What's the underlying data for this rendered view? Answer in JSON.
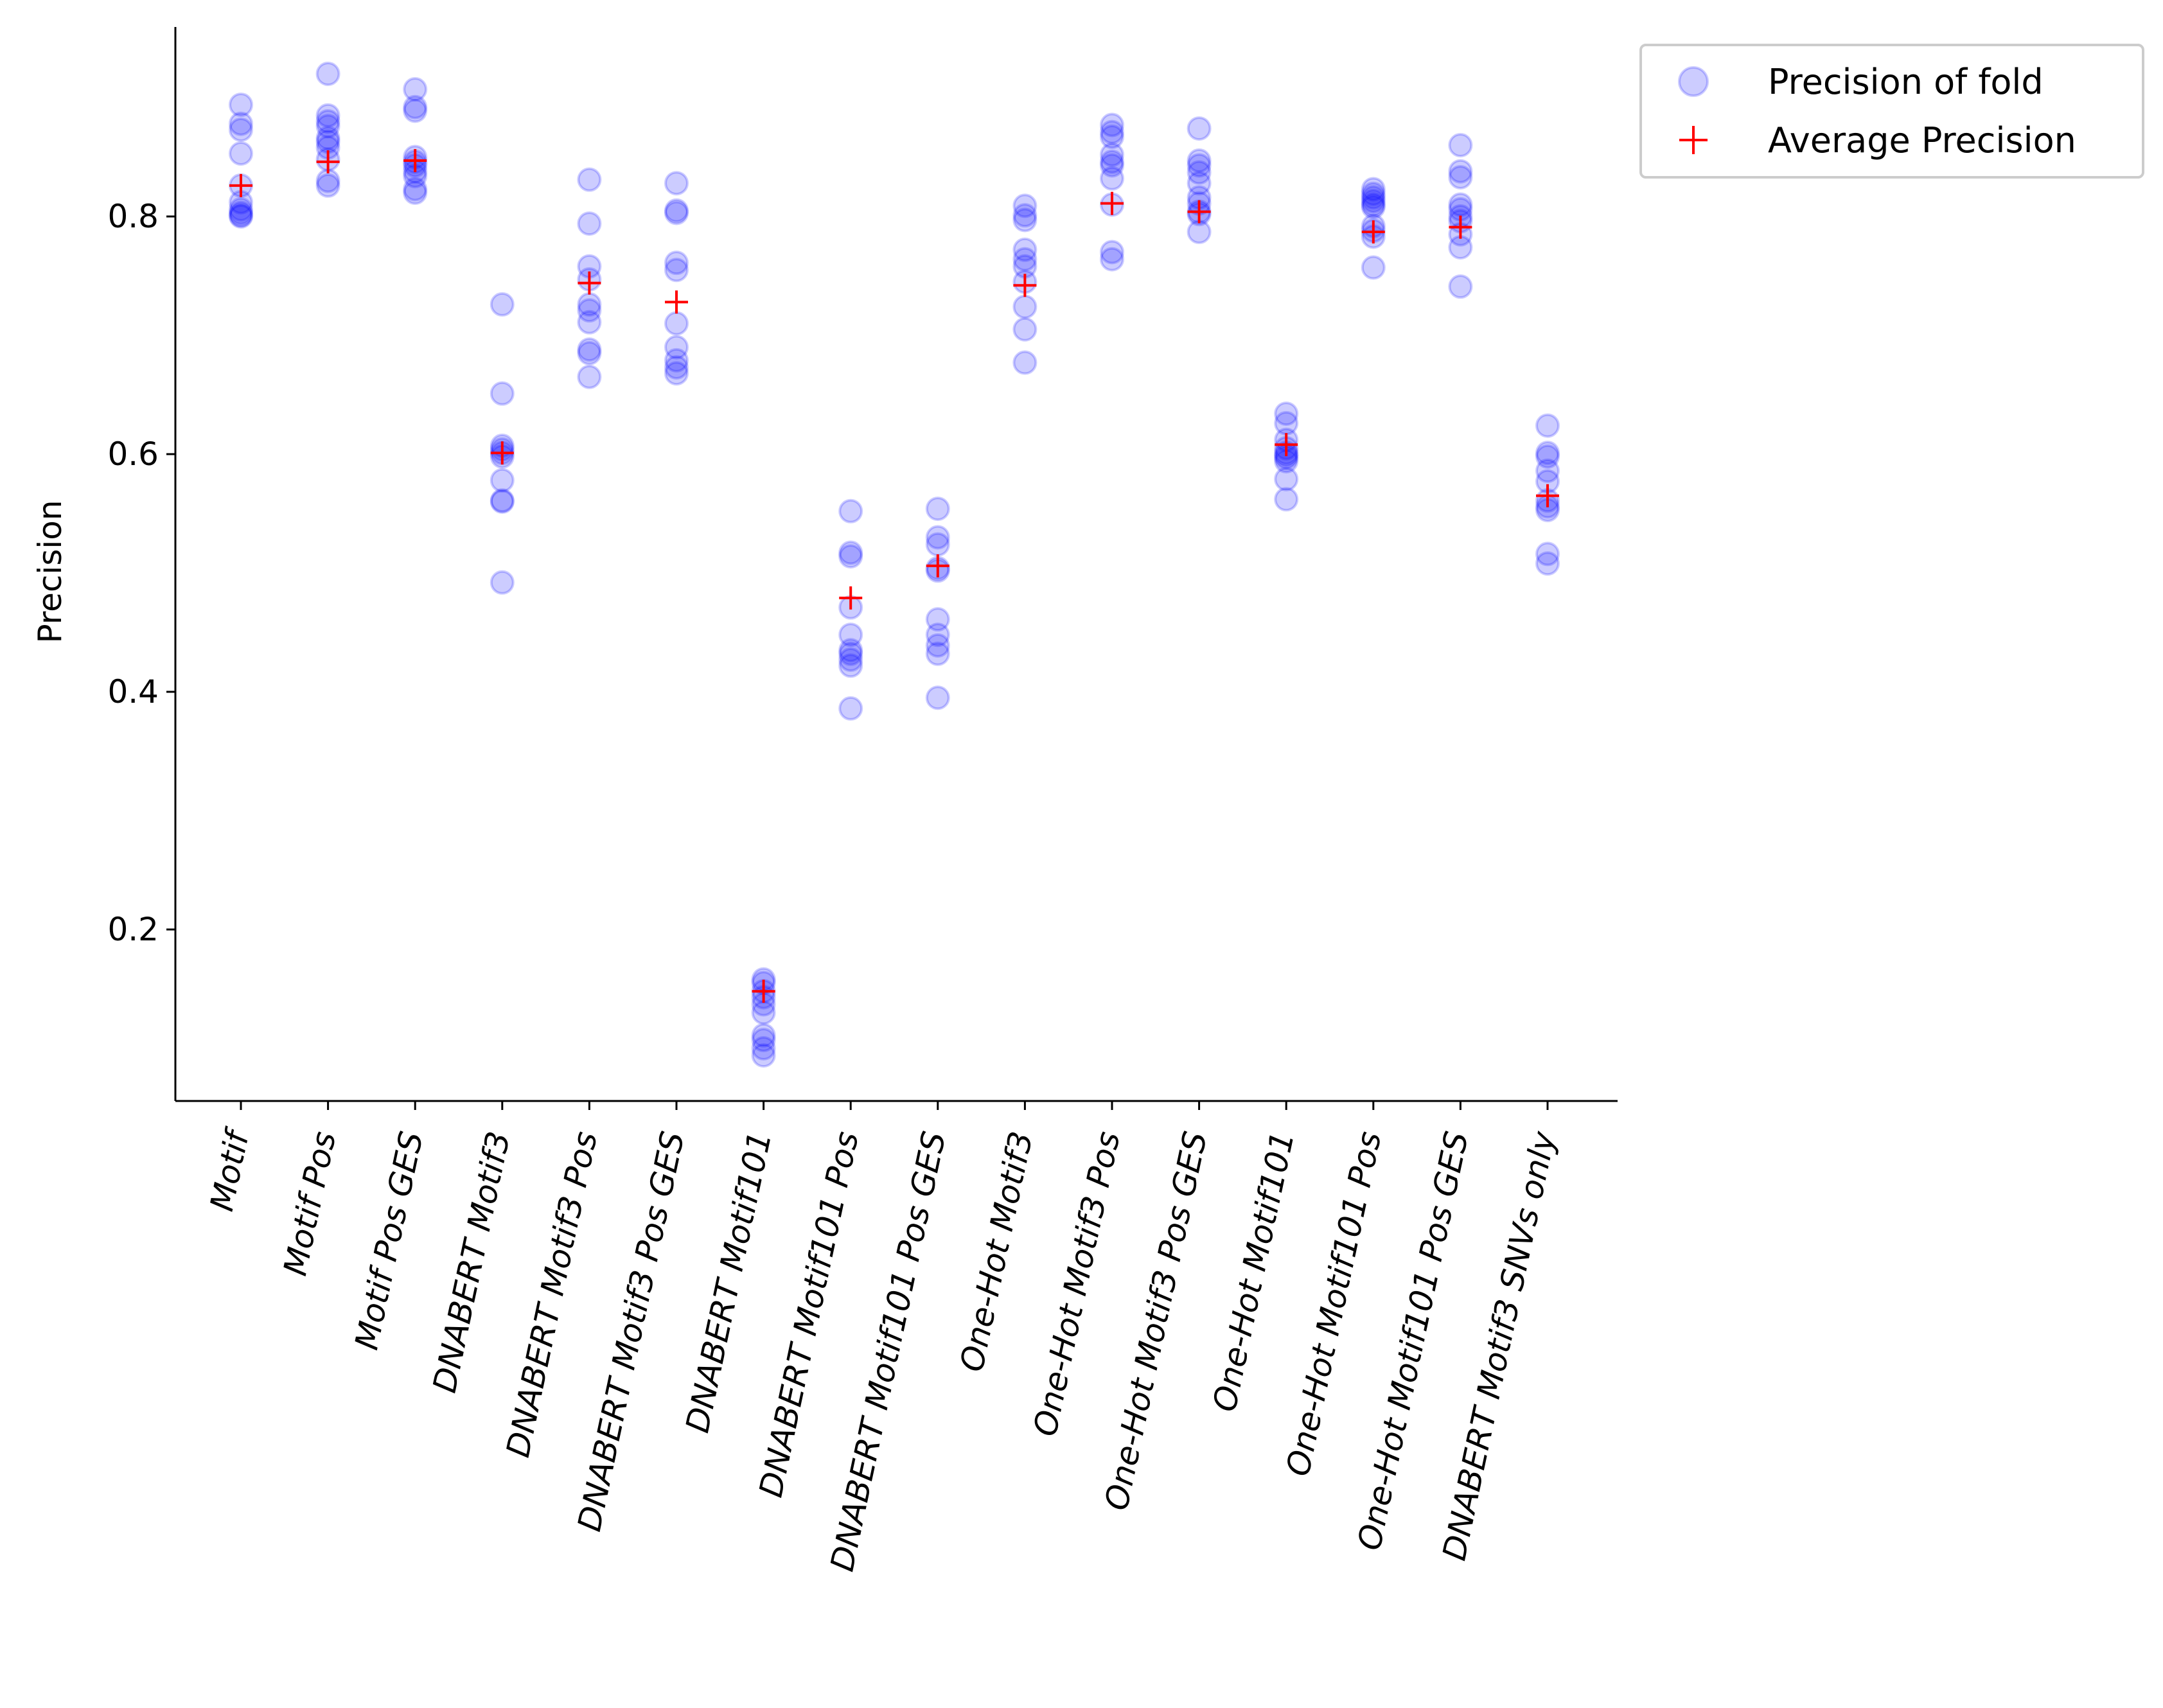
{
  "chart_data": {
    "type": "scatter",
    "title": "",
    "xlabel": "",
    "ylabel": "Precision",
    "ylim": [
      0.055,
      0.96
    ],
    "yticks": [
      0.2,
      0.4,
      0.6,
      0.8
    ],
    "ytick_labels": [
      "0.2",
      "0.4",
      "0.6",
      "0.8"
    ],
    "grid": false,
    "legend_position": "outside top-right",
    "categories": [
      "Motif",
      "Motif Pos",
      "Motif Pos GES",
      "DNABERT Motif3",
      "DNABERT Motif3 Pos",
      "DNABERT Motif3 Pos GES",
      "DNABERT Motif101",
      "DNABERT Motif101 Pos",
      "DNABERT Motif101 Pos GES",
      "One-Hot Motif3",
      "One-Hot Motif3 Pos",
      "One-Hot Motif3 Pos GES",
      "One-Hot Motif101",
      "One-Hot Motif101 Pos",
      "One-Hot Motif101 Pos GES",
      "DNABERT Motif3 SNVs only"
    ],
    "series": [
      {
        "name": "Precision of fold",
        "marker": "circle",
        "color": "#0000ff",
        "alpha": 0.2,
        "values": [
          [
            0.894,
            0.878,
            0.873,
            0.853,
            0.826,
            0.812,
            0.806,
            0.803,
            0.801,
            0.8
          ],
          [
            0.92,
            0.885,
            0.88,
            0.876,
            0.866,
            0.863,
            0.858,
            0.848,
            0.83,
            0.826
          ],
          [
            0.907,
            0.892,
            0.889,
            0.85,
            0.846,
            0.843,
            0.838,
            0.834,
            0.823,
            0.82
          ],
          [
            0.726,
            0.651,
            0.607,
            0.604,
            0.601,
            0.598,
            0.578,
            0.561,
            0.56,
            0.492
          ],
          [
            0.831,
            0.794,
            0.758,
            0.747,
            0.726,
            0.721,
            0.711,
            0.688,
            0.685,
            0.665
          ],
          [
            0.828,
            0.805,
            0.803,
            0.761,
            0.755,
            0.71,
            0.69,
            0.679,
            0.673,
            0.668
          ],
          [
            0.158,
            0.155,
            0.148,
            0.143,
            0.137,
            0.13,
            0.111,
            0.107,
            0.1,
            0.094
          ],
          [
            0.552,
            0.517,
            0.514,
            0.471,
            0.448,
            0.435,
            0.432,
            0.427,
            0.422,
            0.386
          ],
          [
            0.554,
            0.53,
            0.524,
            0.504,
            0.461,
            0.448,
            0.439,
            0.432,
            0.395,
            0.502
          ],
          [
            0.809,
            0.801,
            0.797,
            0.772,
            0.764,
            0.758,
            0.745,
            0.724,
            0.705,
            0.677
          ],
          [
            0.877,
            0.871,
            0.867,
            0.852,
            0.846,
            0.843,
            0.832,
            0.81,
            0.77,
            0.764
          ],
          [
            0.874,
            0.847,
            0.843,
            0.837,
            0.828,
            0.816,
            0.811,
            0.804,
            0.802,
            0.787
          ],
          [
            0.634,
            0.626,
            0.612,
            0.605,
            0.601,
            0.599,
            0.597,
            0.594,
            0.579,
            0.562
          ],
          [
            0.823,
            0.819,
            0.816,
            0.813,
            0.81,
            0.808,
            0.792,
            0.788,
            0.783,
            0.757
          ],
          [
            0.86,
            0.838,
            0.833,
            0.81,
            0.806,
            0.8,
            0.796,
            0.785,
            0.774,
            0.741
          ],
          [
            0.624,
            0.601,
            0.598,
            0.586,
            0.577,
            0.561,
            0.556,
            0.553,
            0.516,
            0.508
          ]
        ]
      },
      {
        "name": "Average Precision",
        "marker": "plus",
        "color": "#ff0000",
        "values": [
          0.826,
          0.846,
          0.847,
          0.601,
          0.744,
          0.728,
          0.148,
          0.479,
          0.506,
          0.742,
          0.811,
          0.804,
          0.608,
          0.787,
          0.791,
          0.565
        ]
      }
    ]
  }
}
